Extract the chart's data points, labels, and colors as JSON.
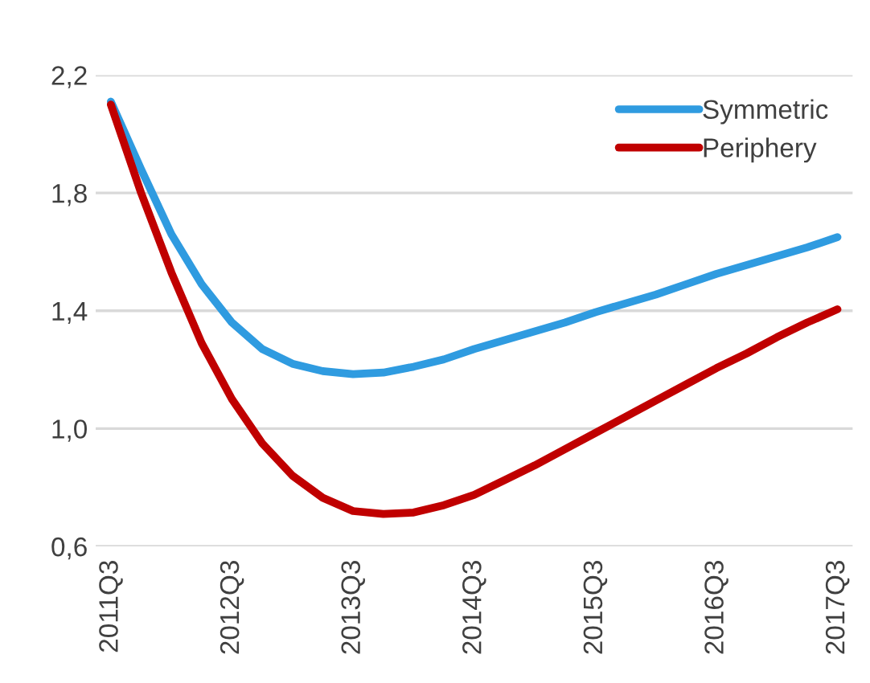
{
  "chart_data": {
    "type": "line",
    "categories": [
      "2011Q3",
      null,
      null,
      null,
      "2012Q3",
      null,
      null,
      null,
      "2013Q3",
      null,
      null,
      null,
      "2014Q3",
      null,
      null,
      null,
      "2015Q3",
      null,
      null,
      null,
      "2016Q3",
      null,
      null,
      null,
      "2017Q3"
    ],
    "series": [
      {
        "name": "Symmetric",
        "color": "#2f9be0",
        "values": [
          2.11,
          1.88,
          1.66,
          1.49,
          1.36,
          1.27,
          1.22,
          1.195,
          1.185,
          1.19,
          1.21,
          1.235,
          1.27,
          1.3,
          1.33,
          1.36,
          1.395,
          1.425,
          1.455,
          1.49,
          1.525,
          1.555,
          1.585,
          1.615,
          1.65
        ]
      },
      {
        "name": "Periphery",
        "color": "#c00000",
        "values": [
          2.1,
          1.8,
          1.53,
          1.29,
          1.1,
          0.95,
          0.84,
          0.765,
          0.72,
          0.71,
          0.715,
          0.74,
          0.775,
          0.825,
          0.875,
          0.93,
          0.985,
          1.04,
          1.095,
          1.15,
          1.205,
          1.255,
          1.31,
          1.36,
          1.405
        ]
      }
    ],
    "ylim": [
      0.6,
      2.2
    ],
    "yticks": [
      {
        "value": 0.6,
        "label": "0,6"
      },
      {
        "value": 1.0,
        "label": "1,0"
      },
      {
        "value": 1.4,
        "label": "1,4"
      },
      {
        "value": 1.8,
        "label": "1,8"
      },
      {
        "value": 2.2,
        "label": "2,2"
      }
    ],
    "grid": "y",
    "legend": "top right",
    "marker": "none",
    "line_style": "solid"
  }
}
